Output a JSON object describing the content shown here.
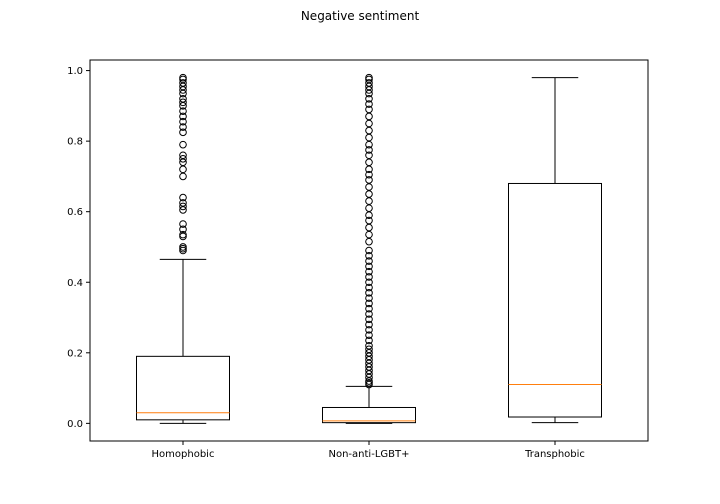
{
  "chart_data": {
    "type": "box",
    "title": "Negative sentiment",
    "xlabel": "",
    "ylabel": "",
    "categories": [
      "Homophobic",
      "Non-anti-LGBT+",
      "Transphobic"
    ],
    "ylim": [
      -0.05,
      1.03
    ],
    "yticks": [
      0.0,
      0.2,
      0.4,
      0.6,
      0.8,
      1.0
    ],
    "ytick_labels": [
      "0.0",
      "0.2",
      "0.4",
      "0.6",
      "0.8",
      "1.0"
    ],
    "grid": false,
    "colors": {
      "box": "#000000",
      "median": "#ff7f0e",
      "background": "#ffffff"
    },
    "boxes": [
      {
        "name": "Homophobic",
        "whisker_low": 0.0,
        "q1": 0.01,
        "median": 0.03,
        "q3": 0.19,
        "whisker_high": 0.465,
        "outliers": [
          0.49,
          0.495,
          0.5,
          0.53,
          0.535,
          0.55,
          0.565,
          0.605,
          0.615,
          0.625,
          0.64,
          0.7,
          0.72,
          0.74,
          0.75,
          0.76,
          0.79,
          0.825,
          0.84,
          0.855,
          0.87,
          0.885,
          0.9,
          0.91,
          0.92,
          0.935,
          0.945,
          0.955,
          0.965,
          0.975,
          0.98
        ]
      },
      {
        "name": "Non-anti-LGBT+",
        "whisker_low": 0.0,
        "q1": 0.002,
        "median": 0.007,
        "q3": 0.045,
        "whisker_high": 0.105,
        "outliers": [
          0.11,
          0.115,
          0.12,
          0.13,
          0.14,
          0.15,
          0.16,
          0.17,
          0.18,
          0.19,
          0.2,
          0.21,
          0.22,
          0.235,
          0.25,
          0.265,
          0.28,
          0.295,
          0.31,
          0.325,
          0.34,
          0.355,
          0.37,
          0.385,
          0.4,
          0.415,
          0.43,
          0.445,
          0.46,
          0.475,
          0.49,
          0.515,
          0.535,
          0.555,
          0.575,
          0.59,
          0.61,
          0.63,
          0.65,
          0.67,
          0.69,
          0.705,
          0.72,
          0.74,
          0.76,
          0.775,
          0.79,
          0.81,
          0.83,
          0.85,
          0.87,
          0.89,
          0.905,
          0.92,
          0.935,
          0.945,
          0.955,
          0.965,
          0.975,
          0.98
        ]
      },
      {
        "name": "Transphobic",
        "whisker_low": 0.002,
        "q1": 0.018,
        "median": 0.11,
        "q3": 0.68,
        "whisker_high": 0.98,
        "outliers": []
      }
    ]
  }
}
